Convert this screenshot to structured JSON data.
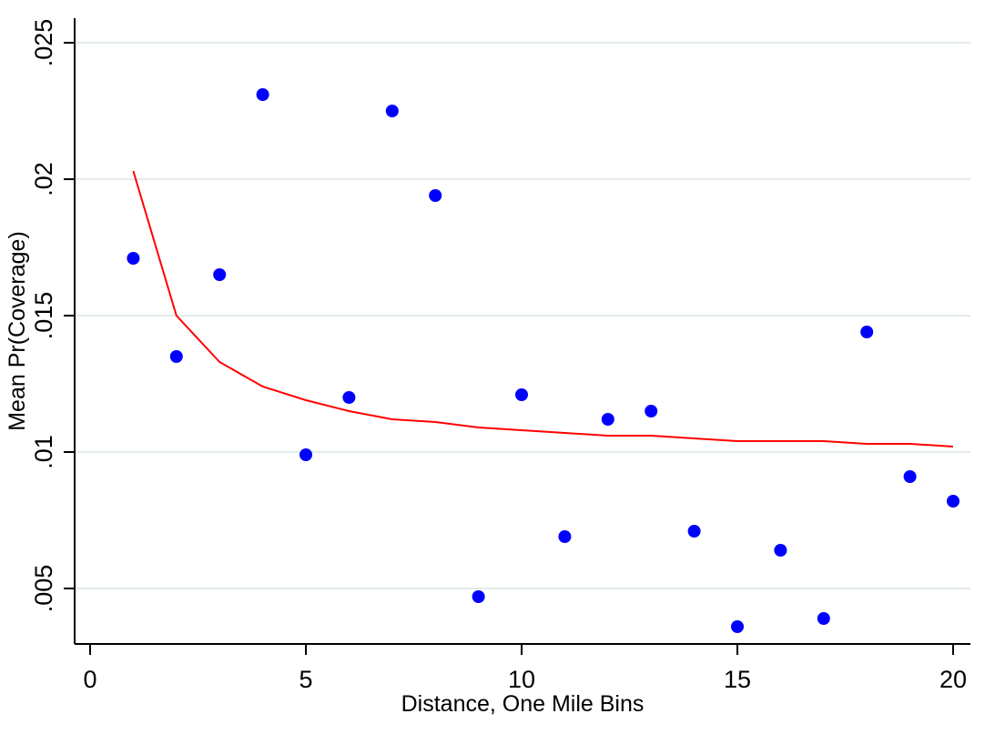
{
  "chart_data": {
    "type": "scatter",
    "title": "",
    "xlabel": "Distance, One Mile Bins",
    "ylabel": "Mean Pr(Coverage)",
    "xlim": [
      0,
      20
    ],
    "ylim": [
      0.0035,
      0.025
    ],
    "x_ticks": [
      0,
      5,
      10,
      15,
      20
    ],
    "x_tick_labels": [
      "0",
      "5",
      "10",
      "15",
      "20"
    ],
    "y_ticks": [
      0.005,
      0.01,
      0.015,
      0.02,
      0.025
    ],
    "y_tick_labels": [
      ".005",
      ".01",
      ".015",
      ".02",
      ".025"
    ],
    "grid": true,
    "legend": "none",
    "series": [
      {
        "type": "scatter",
        "color": "#0000ff",
        "x": [
          1,
          2,
          3,
          4,
          5,
          6,
          7,
          8,
          9,
          10,
          11,
          12,
          13,
          14,
          15,
          16,
          17,
          18,
          19,
          20
        ],
        "y": [
          0.0171,
          0.0135,
          0.0165,
          0.0231,
          0.0099,
          0.012,
          0.0225,
          0.0194,
          0.0047,
          0.0121,
          0.0069,
          0.0112,
          0.0115,
          0.0071,
          0.0036,
          0.0064,
          0.0039,
          0.0144,
          0.0091,
          0.0082
        ]
      },
      {
        "type": "line",
        "color": "#ff0000",
        "x": [
          1,
          2,
          3,
          4,
          5,
          6,
          7,
          8,
          9,
          10,
          11,
          12,
          13,
          14,
          15,
          16,
          17,
          18,
          19,
          20
        ],
        "y": [
          0.0203,
          0.015,
          0.0133,
          0.0124,
          0.0119,
          0.0115,
          0.0112,
          0.0111,
          0.0109,
          0.0108,
          0.0107,
          0.0106,
          0.0106,
          0.0105,
          0.0104,
          0.0104,
          0.0104,
          0.0103,
          0.0103,
          0.0102
        ]
      }
    ]
  }
}
